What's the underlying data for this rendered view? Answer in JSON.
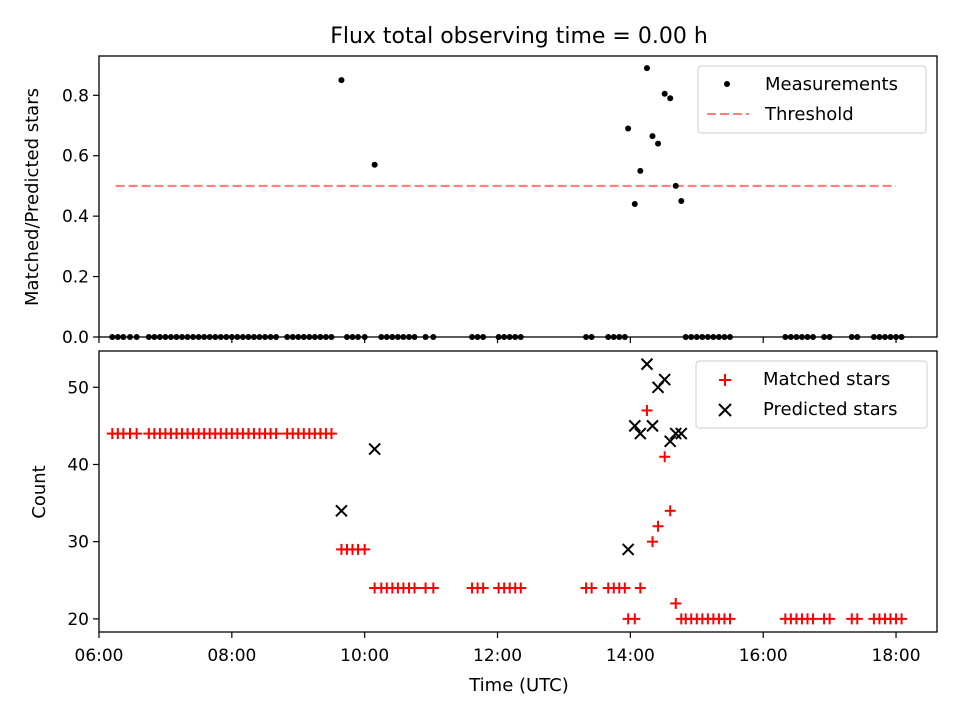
{
  "figure": {
    "title": "Flux total observing time = 0.00 h"
  },
  "chart_data": [
    {
      "type": "scatter",
      "ylabel": "Matched/Predicted stars",
      "xlim": [
        "06:00",
        "18:37"
      ],
      "ylim": [
        0,
        0.93
      ],
      "x_ticks": [
        "06:00",
        "08:00",
        "10:00",
        "12:00",
        "14:00",
        "16:00",
        "18:00"
      ],
      "y_ticks": [
        "0.0",
        "0.2",
        "0.4",
        "0.6",
        "0.8"
      ],
      "y_tick_values": [
        0,
        0.2,
        0.4,
        0.6,
        0.8
      ],
      "legend": {
        "placement": "top-right",
        "entries": [
          "Measurements",
          "Threshold"
        ]
      },
      "colors": {
        "measurements": "#000000",
        "threshold": "#ff7f7f"
      },
      "threshold": {
        "value": 0.5,
        "x_range": [
          "06:15",
          "18:00"
        ]
      },
      "measurements": [
        {
          "x": "06:12",
          "y": 0
        },
        {
          "x": "06:17",
          "y": 0
        },
        {
          "x": "06:22",
          "y": 0
        },
        {
          "x": "06:28",
          "y": 0
        },
        {
          "x": "06:34",
          "y": 0
        },
        {
          "x": "06:45",
          "y": 0
        },
        {
          "x": "06:50",
          "y": 0
        },
        {
          "x": "06:55",
          "y": 0
        },
        {
          "x": "07:00",
          "y": 0
        },
        {
          "x": "07:05",
          "y": 0
        },
        {
          "x": "07:10",
          "y": 0
        },
        {
          "x": "07:15",
          "y": 0
        },
        {
          "x": "07:20",
          "y": 0
        },
        {
          "x": "07:25",
          "y": 0
        },
        {
          "x": "07:30",
          "y": 0
        },
        {
          "x": "07:35",
          "y": 0
        },
        {
          "x": "07:40",
          "y": 0
        },
        {
          "x": "07:45",
          "y": 0
        },
        {
          "x": "07:50",
          "y": 0
        },
        {
          "x": "07:55",
          "y": 0
        },
        {
          "x": "08:00",
          "y": 0
        },
        {
          "x": "08:05",
          "y": 0
        },
        {
          "x": "08:10",
          "y": 0
        },
        {
          "x": "08:15",
          "y": 0
        },
        {
          "x": "08:20",
          "y": 0
        },
        {
          "x": "08:25",
          "y": 0
        },
        {
          "x": "08:30",
          "y": 0
        },
        {
          "x": "08:35",
          "y": 0
        },
        {
          "x": "08:40",
          "y": 0
        },
        {
          "x": "08:50",
          "y": 0
        },
        {
          "x": "08:55",
          "y": 0
        },
        {
          "x": "09:00",
          "y": 0
        },
        {
          "x": "09:05",
          "y": 0
        },
        {
          "x": "09:10",
          "y": 0
        },
        {
          "x": "09:15",
          "y": 0
        },
        {
          "x": "09:20",
          "y": 0
        },
        {
          "x": "09:25",
          "y": 0
        },
        {
          "x": "09:30",
          "y": 0
        },
        {
          "x": "09:39",
          "y": 0.85
        },
        {
          "x": "09:44",
          "y": 0
        },
        {
          "x": "09:49",
          "y": 0
        },
        {
          "x": "09:54",
          "y": 0
        },
        {
          "x": "10:00",
          "y": 0
        },
        {
          "x": "10:09",
          "y": 0.57
        },
        {
          "x": "10:15",
          "y": 0
        },
        {
          "x": "10:20",
          "y": 0
        },
        {
          "x": "10:25",
          "y": 0
        },
        {
          "x": "10:30",
          "y": 0
        },
        {
          "x": "10:35",
          "y": 0
        },
        {
          "x": "10:40",
          "y": 0
        },
        {
          "x": "10:45",
          "y": 0
        },
        {
          "x": "10:55",
          "y": 0
        },
        {
          "x": "11:02",
          "y": 0
        },
        {
          "x": "11:37",
          "y": 0
        },
        {
          "x": "11:42",
          "y": 0
        },
        {
          "x": "11:47",
          "y": 0
        },
        {
          "x": "12:01",
          "y": 0
        },
        {
          "x": "12:06",
          "y": 0
        },
        {
          "x": "12:11",
          "y": 0
        },
        {
          "x": "12:16",
          "y": 0
        },
        {
          "x": "12:21",
          "y": 0
        },
        {
          "x": "13:20",
          "y": 0
        },
        {
          "x": "13:25",
          "y": 0
        },
        {
          "x": "13:40",
          "y": 0
        },
        {
          "x": "13:45",
          "y": 0
        },
        {
          "x": "13:50",
          "y": 0
        },
        {
          "x": "13:55",
          "y": 0
        },
        {
          "x": "13:58",
          "y": 0.69
        },
        {
          "x": "14:04",
          "y": 0.44
        },
        {
          "x": "14:09",
          "y": 0.55
        },
        {
          "x": "14:15",
          "y": 0.89
        },
        {
          "x": "14:20",
          "y": 0.665
        },
        {
          "x": "14:25",
          "y": 0.64
        },
        {
          "x": "14:31",
          "y": 0.805
        },
        {
          "x": "14:36",
          "y": 0.79
        },
        {
          "x": "14:41",
          "y": 0.5
        },
        {
          "x": "14:46",
          "y": 0.45
        },
        {
          "x": "14:50",
          "y": 0
        },
        {
          "x": "14:55",
          "y": 0
        },
        {
          "x": "15:00",
          "y": 0
        },
        {
          "x": "15:05",
          "y": 0
        },
        {
          "x": "15:10",
          "y": 0
        },
        {
          "x": "15:15",
          "y": 0
        },
        {
          "x": "15:20",
          "y": 0
        },
        {
          "x": "15:25",
          "y": 0
        },
        {
          "x": "15:30",
          "y": 0
        },
        {
          "x": "16:20",
          "y": 0
        },
        {
          "x": "16:25",
          "y": 0
        },
        {
          "x": "16:30",
          "y": 0
        },
        {
          "x": "16:35",
          "y": 0
        },
        {
          "x": "16:40",
          "y": 0
        },
        {
          "x": "16:45",
          "y": 0
        },
        {
          "x": "16:55",
          "y": 0
        },
        {
          "x": "17:00",
          "y": 0
        },
        {
          "x": "17:20",
          "y": 0
        },
        {
          "x": "17:25",
          "y": 0
        },
        {
          "x": "17:40",
          "y": 0
        },
        {
          "x": "17:45",
          "y": 0
        },
        {
          "x": "17:50",
          "y": 0
        },
        {
          "x": "17:55",
          "y": 0
        },
        {
          "x": "18:00",
          "y": 0
        },
        {
          "x": "18:05",
          "y": 0
        }
      ]
    },
    {
      "type": "scatter",
      "xlabel": "Time (UTC)",
      "ylabel": "Count",
      "xlim": [
        "06:00",
        "18:37"
      ],
      "ylim": [
        18.3,
        54.7
      ],
      "x_ticks": [
        "06:00",
        "08:00",
        "10:00",
        "12:00",
        "14:00",
        "16:00",
        "18:00"
      ],
      "y_ticks": [
        "20",
        "30",
        "40",
        "50"
      ],
      "y_tick_values": [
        20,
        30,
        40,
        50
      ],
      "legend": {
        "placement": "top-right",
        "entries": [
          "Matched stars",
          "Predicted stars"
        ]
      },
      "colors": {
        "matched": "#ff0000",
        "predicted": "#000000"
      },
      "matched": [
        {
          "x": "06:12",
          "y": 44
        },
        {
          "x": "06:17",
          "y": 44
        },
        {
          "x": "06:22",
          "y": 44
        },
        {
          "x": "06:28",
          "y": 44
        },
        {
          "x": "06:34",
          "y": 44
        },
        {
          "x": "06:45",
          "y": 44
        },
        {
          "x": "06:50",
          "y": 44
        },
        {
          "x": "06:55",
          "y": 44
        },
        {
          "x": "07:00",
          "y": 44
        },
        {
          "x": "07:05",
          "y": 44
        },
        {
          "x": "07:10",
          "y": 44
        },
        {
          "x": "07:15",
          "y": 44
        },
        {
          "x": "07:20",
          "y": 44
        },
        {
          "x": "07:25",
          "y": 44
        },
        {
          "x": "07:30",
          "y": 44
        },
        {
          "x": "07:35",
          "y": 44
        },
        {
          "x": "07:40",
          "y": 44
        },
        {
          "x": "07:45",
          "y": 44
        },
        {
          "x": "07:50",
          "y": 44
        },
        {
          "x": "07:55",
          "y": 44
        },
        {
          "x": "08:00",
          "y": 44
        },
        {
          "x": "08:05",
          "y": 44
        },
        {
          "x": "08:10",
          "y": 44
        },
        {
          "x": "08:15",
          "y": 44
        },
        {
          "x": "08:20",
          "y": 44
        },
        {
          "x": "08:25",
          "y": 44
        },
        {
          "x": "08:30",
          "y": 44
        },
        {
          "x": "08:35",
          "y": 44
        },
        {
          "x": "08:40",
          "y": 44
        },
        {
          "x": "08:50",
          "y": 44
        },
        {
          "x": "08:55",
          "y": 44
        },
        {
          "x": "09:00",
          "y": 44
        },
        {
          "x": "09:05",
          "y": 44
        },
        {
          "x": "09:10",
          "y": 44
        },
        {
          "x": "09:15",
          "y": 44
        },
        {
          "x": "09:20",
          "y": 44
        },
        {
          "x": "09:25",
          "y": 44
        },
        {
          "x": "09:30",
          "y": 44
        },
        {
          "x": "09:39",
          "y": 29
        },
        {
          "x": "09:44",
          "y": 29
        },
        {
          "x": "09:49",
          "y": 29
        },
        {
          "x": "09:54",
          "y": 29
        },
        {
          "x": "10:00",
          "y": 29
        },
        {
          "x": "10:09",
          "y": 24
        },
        {
          "x": "10:15",
          "y": 24
        },
        {
          "x": "10:20",
          "y": 24
        },
        {
          "x": "10:25",
          "y": 24
        },
        {
          "x": "10:30",
          "y": 24
        },
        {
          "x": "10:35",
          "y": 24
        },
        {
          "x": "10:40",
          "y": 24
        },
        {
          "x": "10:45",
          "y": 24
        },
        {
          "x": "10:55",
          "y": 24
        },
        {
          "x": "11:02",
          "y": 24
        },
        {
          "x": "11:37",
          "y": 24
        },
        {
          "x": "11:42",
          "y": 24
        },
        {
          "x": "11:47",
          "y": 24
        },
        {
          "x": "12:01",
          "y": 24
        },
        {
          "x": "12:06",
          "y": 24
        },
        {
          "x": "12:11",
          "y": 24
        },
        {
          "x": "12:16",
          "y": 24
        },
        {
          "x": "12:21",
          "y": 24
        },
        {
          "x": "13:20",
          "y": 24
        },
        {
          "x": "13:25",
          "y": 24
        },
        {
          "x": "13:40",
          "y": 24
        },
        {
          "x": "13:45",
          "y": 24
        },
        {
          "x": "13:50",
          "y": 24
        },
        {
          "x": "13:55",
          "y": 24
        },
        {
          "x": "13:58",
          "y": 20
        },
        {
          "x": "14:04",
          "y": 20
        },
        {
          "x": "14:09",
          "y": 24
        },
        {
          "x": "14:15",
          "y": 47
        },
        {
          "x": "14:20",
          "y": 30
        },
        {
          "x": "14:25",
          "y": 32
        },
        {
          "x": "14:31",
          "y": 41
        },
        {
          "x": "14:36",
          "y": 34
        },
        {
          "x": "14:41",
          "y": 22
        },
        {
          "x": "14:46",
          "y": 20
        },
        {
          "x": "14:50",
          "y": 20
        },
        {
          "x": "14:55",
          "y": 20
        },
        {
          "x": "15:00",
          "y": 20
        },
        {
          "x": "15:05",
          "y": 20
        },
        {
          "x": "15:10",
          "y": 20
        },
        {
          "x": "15:15",
          "y": 20
        },
        {
          "x": "15:20",
          "y": 20
        },
        {
          "x": "15:25",
          "y": 20
        },
        {
          "x": "15:30",
          "y": 20
        },
        {
          "x": "16:20",
          "y": 20
        },
        {
          "x": "16:25",
          "y": 20
        },
        {
          "x": "16:30",
          "y": 20
        },
        {
          "x": "16:35",
          "y": 20
        },
        {
          "x": "16:40",
          "y": 20
        },
        {
          "x": "16:45",
          "y": 20
        },
        {
          "x": "16:55",
          "y": 20
        },
        {
          "x": "17:00",
          "y": 20
        },
        {
          "x": "17:20",
          "y": 20
        },
        {
          "x": "17:25",
          "y": 20
        },
        {
          "x": "17:40",
          "y": 20
        },
        {
          "x": "17:45",
          "y": 20
        },
        {
          "x": "17:50",
          "y": 20
        },
        {
          "x": "17:55",
          "y": 20
        },
        {
          "x": "18:00",
          "y": 20
        },
        {
          "x": "18:05",
          "y": 20
        }
      ],
      "predicted": [
        {
          "x": "09:39",
          "y": 34
        },
        {
          "x": "10:09",
          "y": 42
        },
        {
          "x": "13:58",
          "y": 29
        },
        {
          "x": "14:04",
          "y": 45
        },
        {
          "x": "14:09",
          "y": 44
        },
        {
          "x": "14:15",
          "y": 53
        },
        {
          "x": "14:20",
          "y": 45
        },
        {
          "x": "14:25",
          "y": 50
        },
        {
          "x": "14:31",
          "y": 51
        },
        {
          "x": "14:36",
          "y": 43
        },
        {
          "x": "14:41",
          "y": 44
        },
        {
          "x": "14:46",
          "y": 44
        }
      ]
    }
  ]
}
